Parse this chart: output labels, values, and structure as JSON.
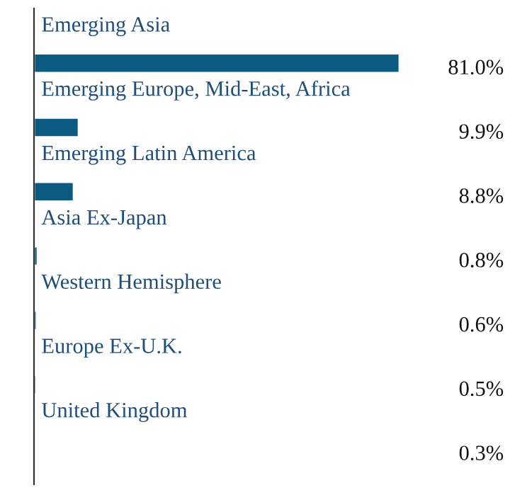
{
  "chart_data": {
    "type": "bar",
    "orientation": "horizontal",
    "categories": [
      "Emerging Asia",
      "Emerging Europe, Mid-East, Africa",
      "Emerging Latin America",
      "Asia Ex-Japan",
      "Western Hemisphere",
      "Europe Ex-U.K.",
      "United Kingdom"
    ],
    "values": [
      81.0,
      9.9,
      8.8,
      0.8,
      0.6,
      0.5,
      0.3
    ],
    "value_labels": [
      "81.0%",
      "9.9%",
      "8.8%",
      "0.8%",
      "0.6%",
      "0.5%",
      "0.3%"
    ],
    "color": "#0b5a82",
    "tick_labels": false
  }
}
